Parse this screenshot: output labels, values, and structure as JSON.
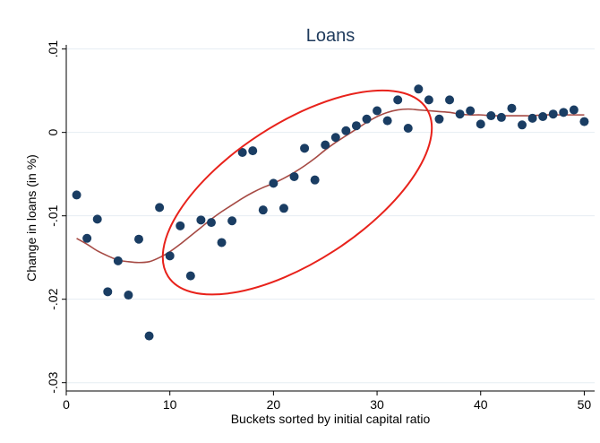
{
  "chart_data": {
    "type": "scatter",
    "title": "Loans",
    "xlabel": "Buckets sorted by initial capital ratio",
    "ylabel": "Change in loans (in %)",
    "xlim": [
      0,
      51
    ],
    "ylim": [
      -0.031,
      0.0105
    ],
    "x_ticks": [
      0,
      10,
      20,
      30,
      40,
      50
    ],
    "x_tick_labels": [
      "0",
      "10",
      "20",
      "30",
      "40",
      "50"
    ],
    "y_ticks": [
      0.01,
      0,
      -0.01,
      -0.02,
      -0.03
    ],
    "y_tick_labels": [
      ".01",
      "0",
      "-.01",
      "-.02",
      "-.03"
    ],
    "grid": true,
    "legend": "none",
    "colors": {
      "points": "#1a3d63",
      "fit_line": "#a64a44",
      "highlight_ellipse": "#e8221b",
      "title": "#1e3a5c",
      "grid": "#e6edf2"
    },
    "series": [
      {
        "type": "scatter",
        "x": [
          1,
          2,
          3,
          4,
          5,
          6,
          7,
          8,
          9,
          10,
          11,
          12,
          13,
          14,
          15,
          16,
          17,
          18,
          19,
          20,
          21,
          22,
          23,
          24,
          25,
          26,
          27,
          28,
          29,
          30,
          31,
          32,
          33,
          34,
          35,
          36,
          37,
          38,
          39,
          40,
          41,
          42,
          43,
          44,
          45,
          46,
          47,
          48,
          49,
          50
        ],
        "y": [
          -0.0075,
          -0.0127,
          -0.0104,
          -0.0191,
          -0.0154,
          -0.0195,
          -0.0128,
          -0.0244,
          -0.009,
          -0.0148,
          -0.0112,
          -0.0172,
          -0.0105,
          -0.0108,
          -0.0132,
          -0.0106,
          -0.0024,
          -0.0022,
          -0.0093,
          -0.0061,
          -0.0091,
          -0.0053,
          -0.0019,
          -0.0057,
          -0.0015,
          -0.0006,
          0.0002,
          0.0008,
          0.0016,
          0.0026,
          0.0014,
          0.0039,
          0.0005,
          0.0052,
          0.0039,
          0.0016,
          0.0039,
          0.0022,
          0.0026,
          0.001,
          0.002,
          0.0018,
          0.0029,
          0.0009,
          0.0017,
          0.0019,
          0.0022,
          0.0024,
          0.0027,
          0.0013
        ]
      },
      {
        "type": "line",
        "x": [
          1,
          2,
          3,
          4,
          5,
          6,
          7,
          8,
          9,
          10,
          11,
          12,
          13,
          14,
          15,
          16,
          17,
          18,
          19,
          20,
          21,
          22,
          23,
          24,
          25,
          26,
          27,
          28,
          29,
          30,
          31,
          32,
          33,
          34,
          35,
          36,
          37,
          38,
          39,
          40,
          41,
          42,
          43,
          44,
          45,
          46,
          47,
          48,
          49,
          50
        ],
        "y": [
          -0.0127,
          -0.0134,
          -0.0142,
          -0.0148,
          -0.0153,
          -0.0155,
          -0.0156,
          -0.0155,
          -0.015,
          -0.0143,
          -0.0134,
          -0.0124,
          -0.0114,
          -0.0104,
          -0.0095,
          -0.0087,
          -0.0079,
          -0.0072,
          -0.0066,
          -0.0061,
          -0.0055,
          -0.0048,
          -0.004,
          -0.0031,
          -0.0021,
          -0.0012,
          -0.0004,
          0.0004,
          0.0012,
          0.0019,
          0.0024,
          0.0027,
          0.0028,
          0.0027,
          0.0026,
          0.0025,
          0.0024,
          0.0022,
          0.0021,
          0.0021,
          0.002,
          0.002,
          0.002,
          0.002,
          0.002,
          0.0021,
          0.0021,
          0.0021,
          0.0021,
          0.0021
        ]
      }
    ],
    "annotations": [
      {
        "shape": "ellipse",
        "color": "#e8221b",
        "center": [
          22.3,
          -0.0072
        ],
        "note": ""
      }
    ]
  }
}
